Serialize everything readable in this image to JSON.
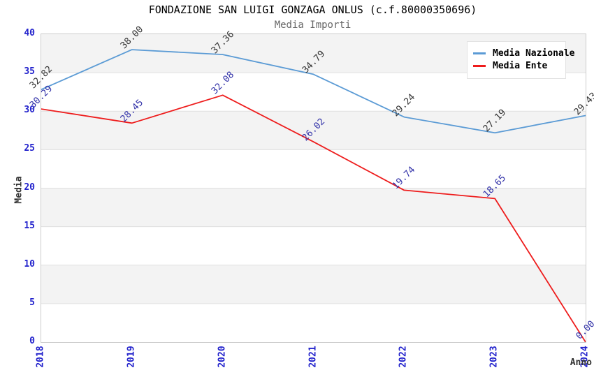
{
  "title": "FONDAZIONE SAN LUIGI GONZAGA ONLUS (c.f.80000350696)",
  "subtitle": "Media Importi",
  "colors": {
    "tick_label": "#2222cc",
    "plot_border": "#cccccc",
    "gridline": "#e0e0e0",
    "band_gray": "#f3f3f3",
    "band_white": "#ffffff",
    "nazionale_line": "#5b9bd5",
    "ente_line": "#ee1c1c",
    "nazionale_point_label": "#333333",
    "ente_point_label": "#3131a8"
  },
  "chart_data": {
    "type": "line",
    "title": "FONDAZIONE SAN LUIGI GONZAGA ONLUS (c.f.80000350696)",
    "subtitle": "Media Importi",
    "xlabel": "Anno",
    "ylabel": "Media",
    "x": [
      "2018",
      "2019",
      "2020",
      "2021",
      "2022",
      "2023",
      "2024"
    ],
    "series": [
      {
        "name": "Media Nazionale",
        "color": "#5b9bd5",
        "label_color": "#333333",
        "values": [
          32.82,
          38.0,
          37.36,
          34.79,
          29.24,
          27.19,
          29.43
        ],
        "point_labels": [
          "32.82",
          "38.00",
          "37.36",
          "34.79",
          "29.24",
          "27.19",
          "29.43"
        ]
      },
      {
        "name": "Media Ente",
        "color": "#ee1c1c",
        "label_color": "#3131a8",
        "values": [
          30.29,
          28.45,
          32.08,
          26.02,
          19.74,
          18.65,
          0.0
        ],
        "point_labels": [
          "30.29",
          "28.45",
          "32.08",
          "26.02",
          "19.74",
          "18.65",
          "0.00"
        ]
      }
    ],
    "ylim": [
      0,
      40
    ],
    "ytick_step": 5,
    "yticks": [
      "0",
      "5",
      "10",
      "15",
      "20",
      "25",
      "30",
      "35",
      "40"
    ],
    "grid": "horizontal-bands-alternating",
    "legend_position": "top-right",
    "point_label_rotation_deg": -45,
    "xtick_rotation_deg": -90
  }
}
